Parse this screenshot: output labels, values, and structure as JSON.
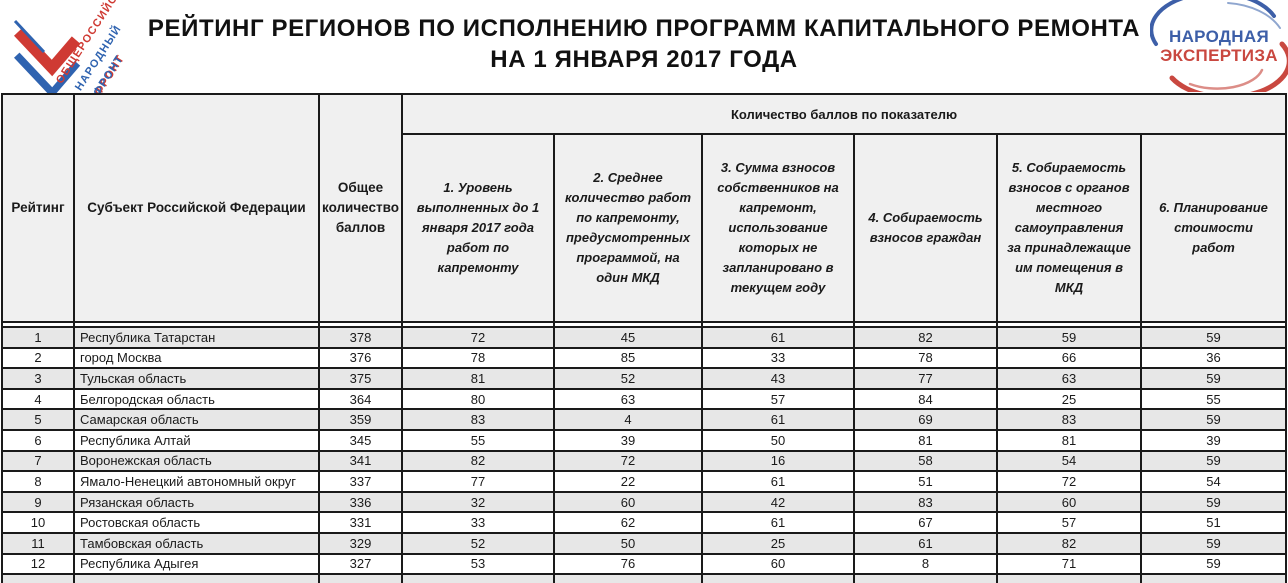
{
  "title": {
    "line1": "РЕЙТИНГ РЕГИОНОВ ПО ИСПОЛНЕНИЮ ПРОГРАММ КАПИТАЛЬНОГО РЕМОНТА",
    "line2": "НА 1 ЯНВАРЯ 2017 ГОДА"
  },
  "logo_left": {
    "words": [
      "ОБЩЕРОССИЙСКИЙ",
      "НАРОДНЫЙ",
      "ФРОНТ"
    ]
  },
  "logo_right": {
    "line1": "НАРОДНАЯ",
    "line2": "ЭКСПЕРТИЗА"
  },
  "table": {
    "col_rank": "Рейтинг",
    "col_region": "Субъект Российской Федерации",
    "col_total": "Общее количество баллов",
    "group_header": "Количество баллов по показателю",
    "indicators": [
      "1. Уровень выполненных до 1 января 2017 года работ по капремонту",
      "2. Среднее количество работ по капремонту, предусмотренных программой, на один МКД",
      "3. Сумма взносов собственников на капремонт, использование которых не запланировано в текущем году",
      "4. Собираемость взносов граждан",
      "5. Собираемость взносов с органов местного самоуправления за принадлежащие им помещения в МКД",
      "6. Планирование стоимости работ"
    ],
    "rows": [
      {
        "rank": 1,
        "region": "Республика Татарстан",
        "total": 378,
        "scores": [
          72,
          45,
          61,
          82,
          59,
          59
        ]
      },
      {
        "rank": 2,
        "region": "город Москва",
        "total": 376,
        "scores": [
          78,
          85,
          33,
          78,
          66,
          36
        ]
      },
      {
        "rank": 3,
        "region": "Тульская область",
        "total": 375,
        "scores": [
          81,
          52,
          43,
          77,
          63,
          59
        ]
      },
      {
        "rank": 4,
        "region": "Белгородская область",
        "total": 364,
        "scores": [
          80,
          63,
          57,
          84,
          25,
          55
        ]
      },
      {
        "rank": 5,
        "region": "Самарская область",
        "total": 359,
        "scores": [
          83,
          4,
          61,
          69,
          83,
          59
        ]
      },
      {
        "rank": 6,
        "region": "Республика Алтай",
        "total": 345,
        "scores": [
          55,
          39,
          50,
          81,
          81,
          39
        ]
      },
      {
        "rank": 7,
        "region": "Воронежская область",
        "total": 341,
        "scores": [
          82,
          72,
          16,
          58,
          54,
          59
        ]
      },
      {
        "rank": 8,
        "region": "Ямало-Ненецкий автономный округ",
        "total": 337,
        "scores": [
          77,
          22,
          61,
          51,
          72,
          54
        ]
      },
      {
        "rank": 9,
        "region": "Рязанская область",
        "total": 336,
        "scores": [
          32,
          60,
          42,
          83,
          60,
          59
        ]
      },
      {
        "rank": 10,
        "region": "Ростовская область",
        "total": 331,
        "scores": [
          33,
          62,
          61,
          67,
          57,
          51
        ]
      },
      {
        "rank": 11,
        "region": "Тамбовская область",
        "total": 329,
        "scores": [
          52,
          50,
          25,
          61,
          82,
          59
        ]
      },
      {
        "rank": 12,
        "region": "Республика Адыгея",
        "total": 327,
        "scores": [
          53,
          76,
          60,
          8,
          71,
          59
        ]
      }
    ]
  },
  "colors": {
    "border": "#1a1a1a",
    "header-bg": "#f0f0f0",
    "row-alt": "#e7e7e7",
    "onf-red": "#cf3a33",
    "onf-blue": "#2f63b0",
    "ne-blue": "#3d5fa8",
    "ne-red": "#c94840"
  }
}
